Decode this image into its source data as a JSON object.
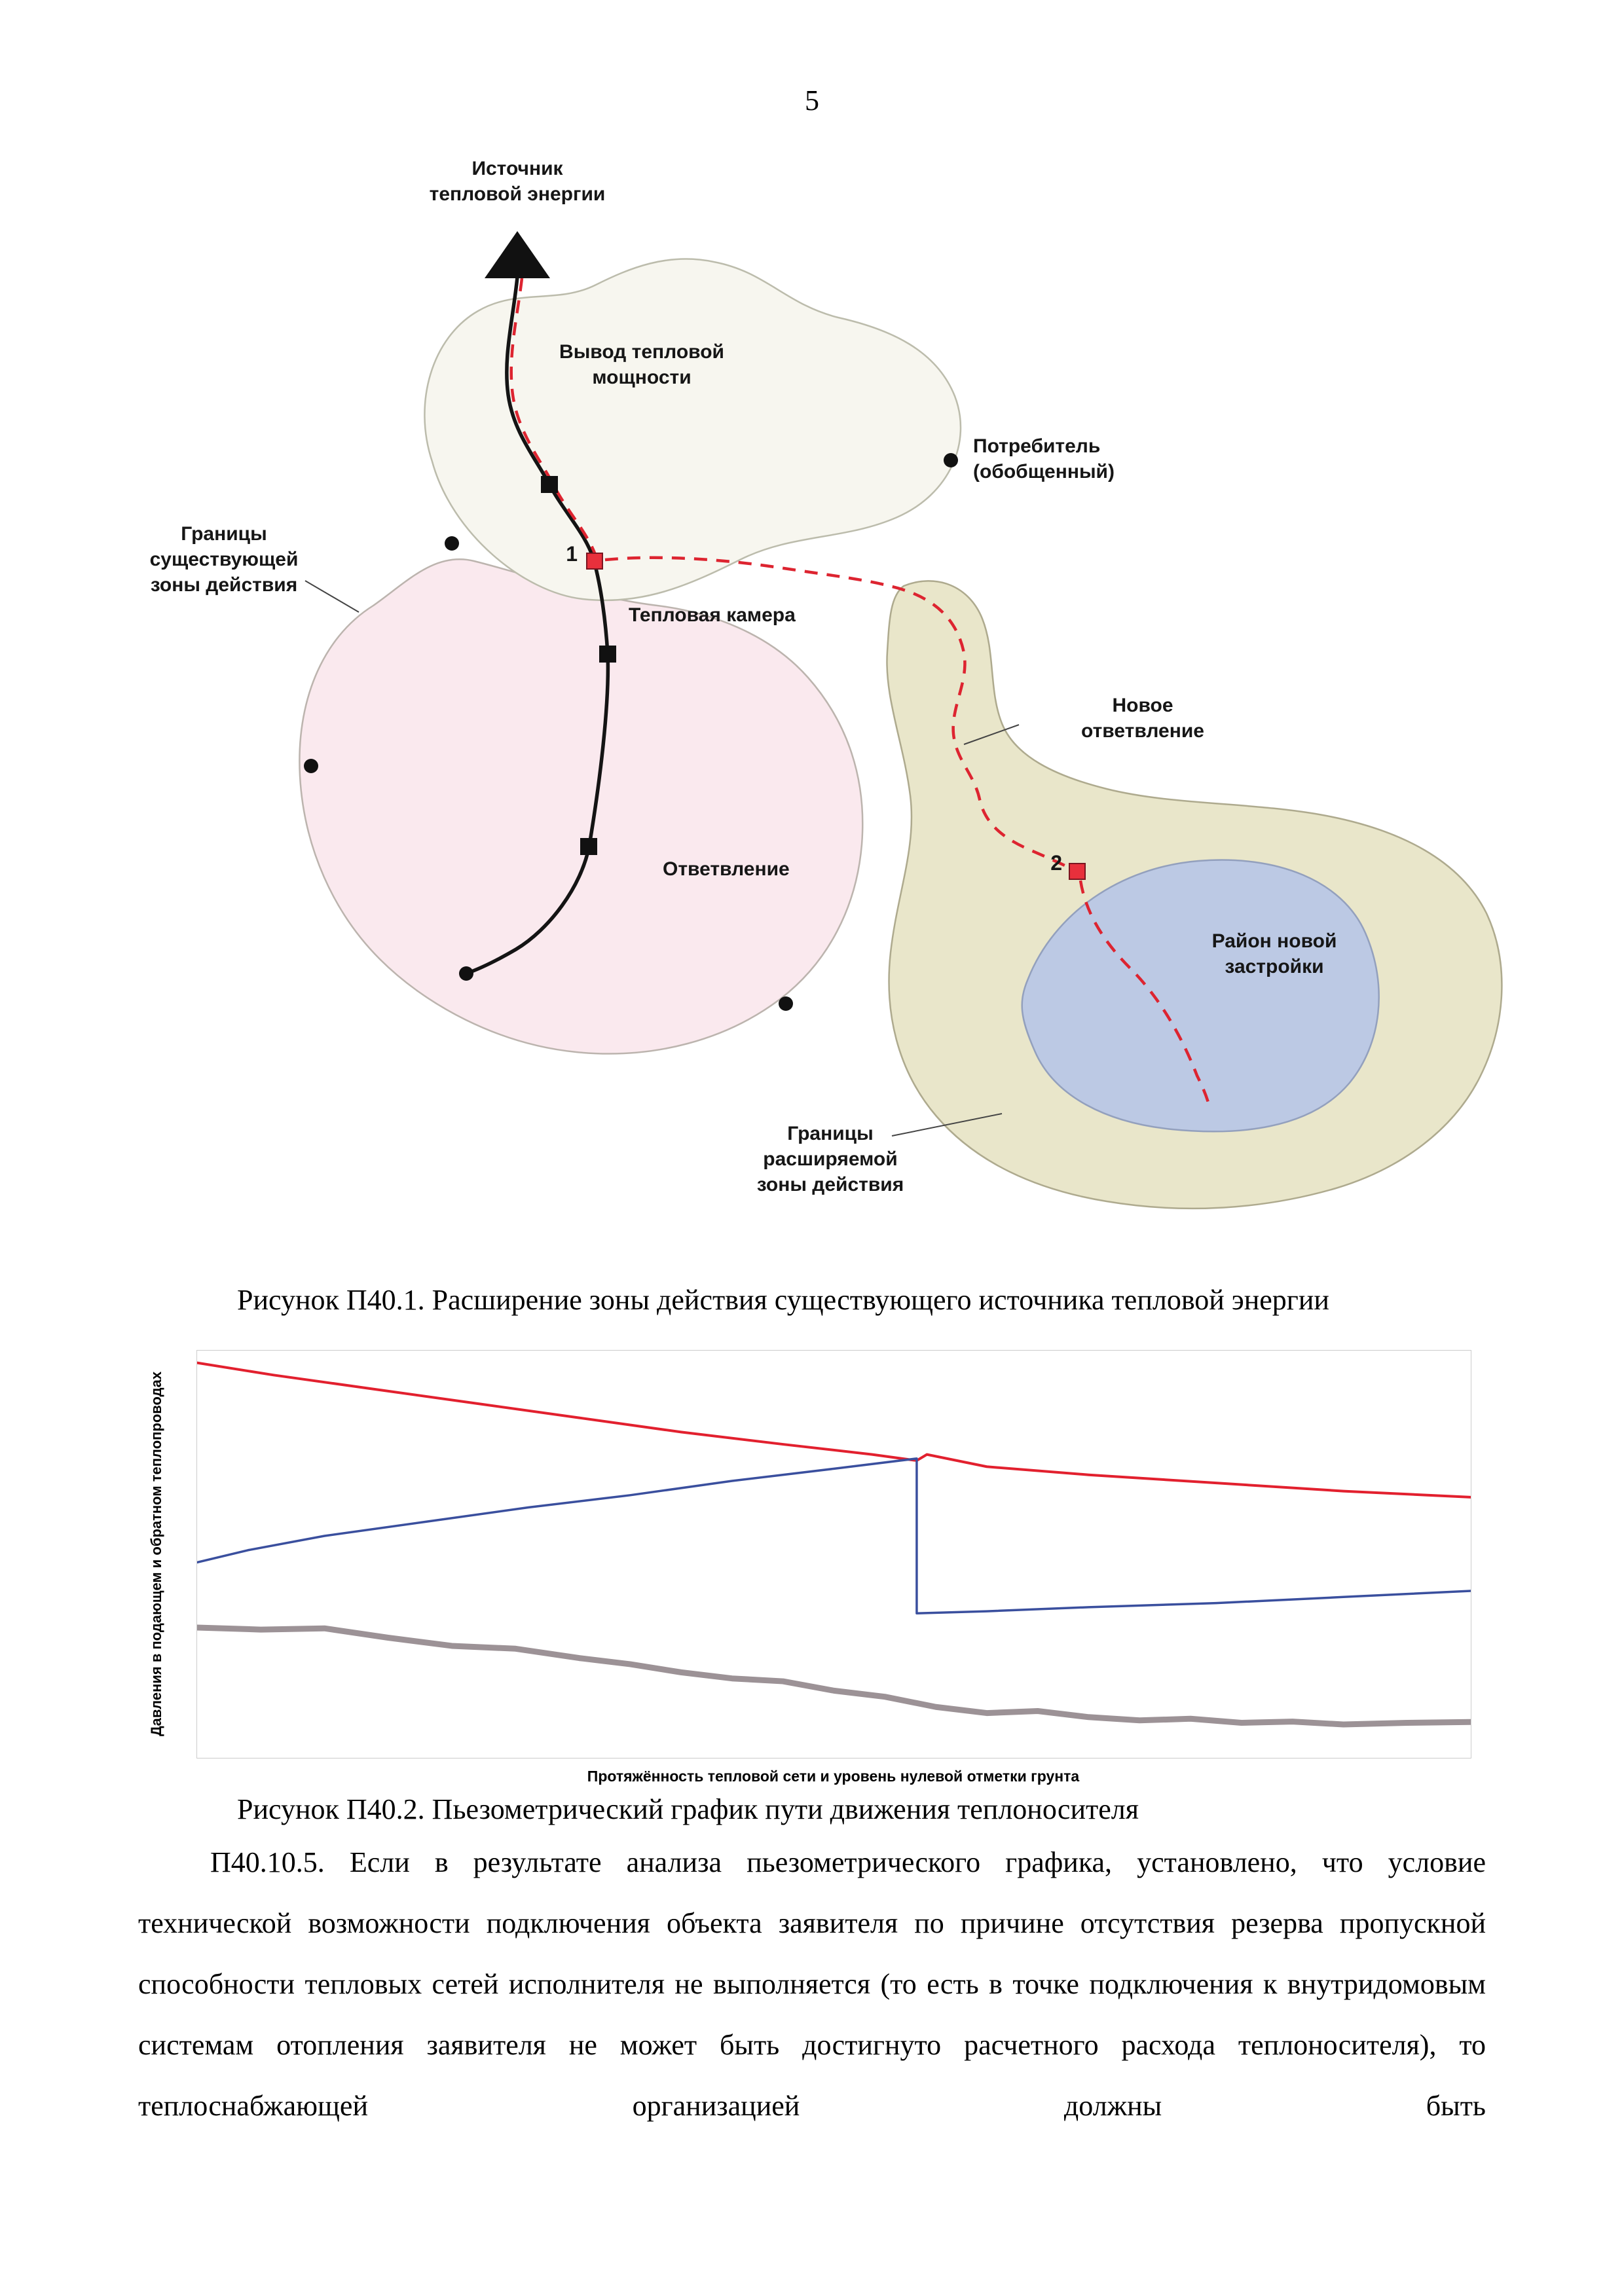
{
  "page": {
    "number": "5"
  },
  "figure1": {
    "caption": "Рисунок П40.1. Расширение зоны действия существующего источника тепловой энергии",
    "labels": {
      "source": "Источник\nтепловой энергии",
      "heat_output": "Вывод тепловой\nмощности",
      "consumer": "Потребитель\n(обобщенный)",
      "existing_zone": "Границы\nсуществующей\nзоны действия",
      "heat_chamber": "Тепловая камера",
      "new_branch": "Новое\nответвление",
      "branch": "Ответвление",
      "new_district": "Район новой\nзастройки",
      "expanded_zone": "Границы\nрасширяемой\nзоны действия",
      "node1": "1",
      "node2": "2"
    },
    "colors": {
      "existing_zone_fill": "#fae9ee",
      "source_zone_fill": "#f7f6ef",
      "expanded_zone_fill": "#e9e6ca",
      "new_district_fill": "#bcc9e4",
      "network_color": "#141414",
      "new_branch_color": "#dd2430"
    }
  },
  "figure2": {
    "caption": "Рисунок П40.2. Пьезометрический график пути движения теплоносителя"
  },
  "chart_data": {
    "type": "line",
    "title": "",
    "xlabel": "Протяжённость тепловой сети и уровень нулевой отметки грунта",
    "ylabel": "Давления в подающем и обратном теплопроводах",
    "xlim": [
      0,
      100
    ],
    "ylim": [
      0,
      100
    ],
    "grid": false,
    "legend_position": "none",
    "series": [
      {
        "name": "supply-pressure",
        "color": "#e2202e",
        "width": 4,
        "x": [
          0,
          6,
          14,
          22,
          30,
          38,
          46,
          53,
          56.5,
          57.3,
          62,
          70,
          80,
          90,
          100
        ],
        "y": [
          97,
          94,
          90.5,
          87,
          83.5,
          80,
          77,
          74.5,
          73,
          74.5,
          71.5,
          69.5,
          67.5,
          65.5,
          64
        ]
      },
      {
        "name": "return-pressure",
        "color": "#3a4f9e",
        "width": 3.5,
        "x": [
          0,
          4,
          10,
          18,
          26,
          34,
          42,
          50,
          56.5,
          56.5,
          62,
          70,
          80,
          90,
          100
        ],
        "y": [
          48,
          51,
          54.5,
          58,
          61.5,
          64.5,
          68,
          71,
          73.5,
          35.5,
          36,
          37,
          38,
          39.5,
          41
        ]
      },
      {
        "name": "ground-level",
        "color": "#9c9296",
        "width": 9,
        "x": [
          0,
          5,
          10,
          15,
          20,
          25,
          30,
          34,
          38,
          42,
          46,
          50,
          54,
          58,
          62,
          66,
          70,
          74,
          78,
          82,
          86,
          90,
          95,
          100
        ],
        "y": [
          32,
          31.5,
          31.8,
          29.5,
          27.5,
          26.8,
          24.5,
          23,
          21,
          19.5,
          18.8,
          16.5,
          15,
          12.5,
          11,
          11.5,
          10,
          9.2,
          9.6,
          8.6,
          8.9,
          8.2,
          8.6,
          8.8
        ]
      }
    ]
  },
  "body": {
    "paragraph": "П40.10.5. Если в результате анализа пьезометрического графика, установлено, что условие технической возможности подключения объекта заявителя по причине отсутствия резерва пропускной способности тепловых сетей исполнителя не выполняется (то есть в точке подключения к внутридомовым системам отопления заявителя не может быть достигнуто расчетного расхода теплоносителя), то теплоснабжающей организацией должны быть"
  }
}
